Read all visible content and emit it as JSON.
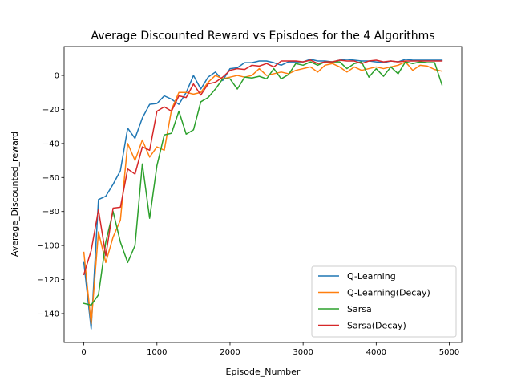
{
  "chart_data": {
    "type": "line",
    "title": "Average Discounted Reward vs Episdoes for the 4 Algorithms",
    "xlabel": "Episode_Number",
    "ylabel": "Average_Discounted_reward",
    "xlim": [
      -270,
      5170
    ],
    "ylim": [
      -157,
      17
    ],
    "xticks": [
      0,
      1000,
      2000,
      3000,
      4000,
      5000
    ],
    "xtick_labels": [
      "0",
      "1000",
      "2000",
      "3000",
      "4000",
      "5000"
    ],
    "yticks": [
      -140,
      -120,
      -100,
      -80,
      -60,
      -40,
      -20,
      0
    ],
    "ytick_labels": [
      "−140",
      "−120",
      "−100",
      "−80",
      "−60",
      "−40",
      "−20",
      "0"
    ],
    "grid": false,
    "legend_position": "lower-right",
    "x": [
      0,
      100,
      200,
      300,
      400,
      500,
      600,
      700,
      800,
      900,
      1000,
      1100,
      1200,
      1300,
      1400,
      1500,
      1600,
      1700,
      1800,
      1900,
      2000,
      2100,
      2200,
      2300,
      2400,
      2500,
      2600,
      2700,
      2800,
      2900,
      3000,
      3100,
      3200,
      3300,
      3400,
      3500,
      3600,
      3700,
      3800,
      3900,
      4000,
      4100,
      4200,
      4300,
      4400,
      4500,
      4600,
      4700,
      4800,
      4900
    ],
    "series": [
      {
        "name": "Q-Learning",
        "color": "#1f77b4",
        "values": [
          -110,
          -149,
          -73,
          -71,
          -64,
          -56,
          -31,
          -37,
          -25,
          -17,
          -16.5,
          -12,
          -14,
          -17,
          -10,
          0,
          -8,
          -1,
          2,
          -3,
          4,
          4.5,
          7.5,
          7.5,
          8.5,
          8.5,
          7.5,
          6,
          8,
          8,
          8,
          9.5,
          8.5,
          8.5,
          8,
          9,
          9.5,
          9,
          8.5,
          8.5,
          8,
          7.5,
          8.5,
          8,
          9.5,
          9,
          9,
          9,
          9,
          9
        ]
      },
      {
        "name": "Q-Learning(Decay)",
        "color": "#ff7f0e",
        "values": [
          -104,
          -146,
          -92,
          -110,
          -95,
          -85,
          -40,
          -50,
          -38,
          -48,
          -42,
          -44,
          -20,
          -10,
          -10,
          -11,
          -10,
          -4,
          0,
          -2,
          -1,
          0,
          -1,
          0,
          4,
          0,
          1,
          2,
          1,
          3,
          4,
          5,
          2,
          6,
          7,
          5,
          2,
          5,
          3,
          4,
          5,
          4,
          5,
          6,
          8,
          3,
          6,
          5.5,
          3.5,
          2.5
        ]
      },
      {
        "name": "Sarsa",
        "color": "#2ca02c",
        "values": [
          -134,
          -135,
          -129,
          -98,
          -80,
          -98,
          -110,
          -100,
          -52,
          -84,
          -53,
          -35,
          -34,
          -21,
          -34.5,
          -32,
          -15.5,
          -13,
          -8,
          -2,
          -2,
          -8,
          -1,
          -1.5,
          -0.5,
          -2,
          4,
          -2,
          0.5,
          7,
          6,
          8,
          6,
          8,
          8,
          8,
          4,
          7,
          8,
          -1,
          4,
          -0.5,
          5,
          1,
          8,
          7,
          8,
          7.5,
          7.5,
          -5.5
        ]
      },
      {
        "name": "Sarsa(Decay)",
        "color": "#d62728",
        "values": [
          -117,
          -103,
          -79,
          -106,
          -78,
          -77.5,
          -55,
          -58,
          -42,
          -44,
          -21,
          -18.5,
          -21,
          -12,
          -13,
          -5,
          -11.5,
          -5,
          -4,
          -1,
          3,
          4,
          3.5,
          6,
          5.5,
          7,
          5,
          8.5,
          8.5,
          8.5,
          8,
          9,
          7,
          8,
          8,
          9,
          8.5,
          8.5,
          7,
          8.5,
          9,
          8,
          8.5,
          8,
          8.5,
          8.5,
          8.5,
          8.5,
          8.5,
          8.5
        ]
      }
    ]
  }
}
